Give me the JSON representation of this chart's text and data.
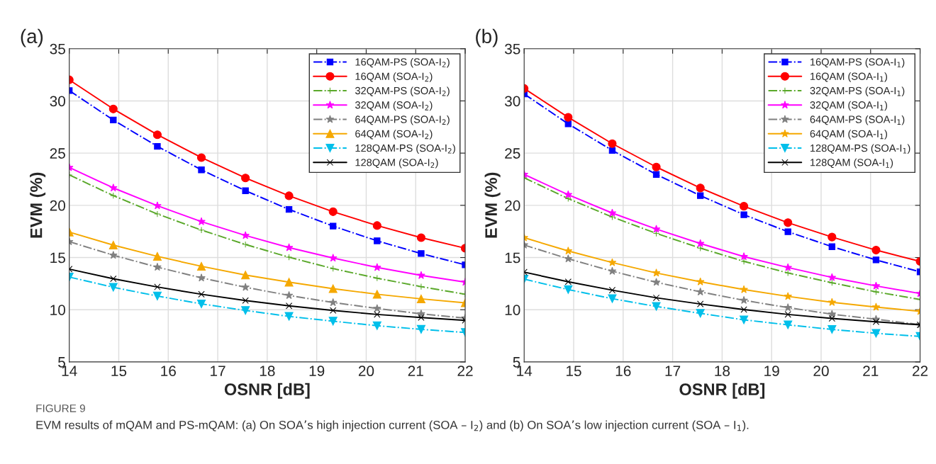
{
  "chart_data": [
    {
      "type": "line",
      "title": "(a)",
      "xlabel": "OSNR [dB]",
      "ylabel": "EVM (%)",
      "x": [
        14,
        14.89,
        15.78,
        16.67,
        17.56,
        18.44,
        19.33,
        20.22,
        21.11,
        22
      ],
      "xlim": [
        14,
        22
      ],
      "xticks": [
        14,
        15,
        16,
        17,
        18,
        19,
        20,
        21,
        22
      ],
      "ylim": [
        5,
        35
      ],
      "yticks": [
        5,
        10,
        15,
        20,
        25,
        30,
        35
      ],
      "grid": true,
      "legend": "top right",
      "annotations": [
        "FIGURE 9",
        "EVM results of mQAM and PS-mQAM: (a) On SOA’s high injection current (SOA – I$_{2}$) and (b) On SOA’s low injection current (SOA – I$_{1}$)."
      ],
      "series": [
        {
          "name": "16QAM-PS (SOA-I$_{2}$)",
          "color": "#0000ff",
          "marker": "square",
          "line_style": "dashdot",
          "values": [
            30.99,
            28.17,
            25.65,
            23.4,
            21.4,
            19.61,
            18.01,
            16.6,
            15.38,
            14.3
          ]
        },
        {
          "name": "16QAM (SOA-I$_{2}$)",
          "color": "#ff0000",
          "marker": "circle",
          "line_style": "solid",
          "values": [
            32.02,
            29.23,
            26.76,
            24.57,
            22.62,
            20.91,
            19.39,
            18.06,
            16.9,
            15.89
          ]
        },
        {
          "name": "32QAM-PS (SOA-I$_{2}$)",
          "color": "#5aa82a",
          "marker": "cross",
          "line_style": "dashdot",
          "values": [
            22.91,
            20.93,
            19.17,
            17.63,
            16.25,
            15.03,
            13.94,
            13.02,
            12.21,
            11.48
          ]
        },
        {
          "name": "32QAM (SOA-I$_{2}$)",
          "color": "#ff00ff",
          "marker": "star",
          "line_style": "solid",
          "values": [
            23.62,
            21.67,
            19.96,
            18.44,
            17.11,
            15.95,
            14.95,
            14.05,
            13.29,
            12.64
          ]
        },
        {
          "name": "64QAM-PS (SOA-I$_{2}$)",
          "color": "#808080",
          "marker": "star",
          "line_style": "dashdot",
          "values": [
            16.52,
            15.22,
            14.08,
            13.05,
            12.15,
            11.37,
            10.69,
            10.12,
            9.61,
            9.2
          ]
        },
        {
          "name": "64QAM (SOA-I$_{2}$)",
          "color": "#f5a800",
          "marker": "triangle",
          "line_style": "solid",
          "values": [
            17.44,
            16.19,
            15.11,
            14.16,
            13.32,
            12.64,
            12.02,
            11.48,
            11.04,
            10.66
          ]
        },
        {
          "name": "128QAM-PS (SOA-I$_{2}$)",
          "color": "#00bfea",
          "marker": "triangle_down",
          "line_style": "dashdot",
          "values": [
            13.13,
            12.15,
            11.31,
            10.56,
            9.93,
            9.36,
            8.9,
            8.47,
            8.12,
            7.82
          ]
        },
        {
          "name": "128QAM (SOA-I$_{2}$)",
          "color": "#000000",
          "marker": "x",
          "line_style": "solid",
          "values": [
            13.89,
            12.97,
            12.18,
            11.48,
            10.88,
            10.37,
            9.93,
            9.55,
            9.25,
            8.98
          ]
        }
      ]
    },
    {
      "type": "line",
      "title": "(b)",
      "xlabel": "OSNR [dB]",
      "ylabel": "EVM (%)",
      "x": [
        14,
        14.89,
        15.78,
        16.67,
        17.56,
        18.44,
        19.33,
        20.22,
        21.11,
        22
      ],
      "xlim": [
        14,
        22
      ],
      "xticks": [
        14,
        15,
        16,
        17,
        18,
        19,
        20,
        21,
        22
      ],
      "ylim": [
        5,
        35
      ],
      "yticks": [
        5,
        10,
        15,
        20,
        25,
        30,
        35
      ],
      "grid": true,
      "legend": "top right",
      "series": [
        {
          "name": "16QAM-PS (SOA-I$_{1}$)",
          "color": "#0000ff",
          "marker": "square",
          "line_style": "dashdot",
          "values": [
            30.67,
            27.8,
            25.26,
            22.96,
            20.93,
            19.1,
            17.47,
            16.04,
            14.77,
            13.63
          ]
        },
        {
          "name": "16QAM (SOA-I$_{1}$)",
          "color": "#ff0000",
          "marker": "circle",
          "line_style": "solid",
          "values": [
            31.19,
            28.43,
            25.91,
            23.67,
            21.66,
            19.91,
            18.34,
            16.96,
            15.71,
            14.63
          ]
        },
        {
          "name": "32QAM-PS (SOA-I$_{1}$)",
          "color": "#5aa82a",
          "marker": "cross",
          "line_style": "dashdot",
          "values": [
            22.64,
            20.64,
            18.88,
            17.31,
            15.9,
            14.63,
            13.52,
            12.58,
            11.71,
            10.98
          ]
        },
        {
          "name": "32QAM (SOA-I$_{1}$)",
          "color": "#ff00ff",
          "marker": "star",
          "line_style": "solid",
          "values": [
            22.96,
            21.02,
            19.26,
            17.72,
            16.34,
            15.09,
            14.04,
            13.09,
            12.28,
            11.55
          ]
        },
        {
          "name": "64QAM-PS (SOA-I$_{1}$)",
          "color": "#808080",
          "marker": "star",
          "line_style": "dashdot",
          "values": [
            16.2,
            14.88,
            13.69,
            12.63,
            11.71,
            10.9,
            10.2,
            9.57,
            9.09,
            8.57
          ]
        },
        {
          "name": "64QAM (SOA-I$_{1}$)",
          "color": "#f5a800",
          "marker": "star",
          "line_style": "solid",
          "values": [
            16.9,
            15.63,
            14.52,
            13.52,
            12.68,
            11.93,
            11.28,
            10.71,
            10.25,
            9.84
          ]
        },
        {
          "name": "128QAM-PS (SOA-I$_{1}$)",
          "color": "#00bfea",
          "marker": "triangle_down",
          "line_style": "dashdot",
          "values": [
            12.93,
            11.93,
            11.06,
            10.31,
            9.65,
            9.03,
            8.55,
            8.11,
            7.74,
            7.44
          ]
        },
        {
          "name": "128QAM (SOA-I$_{1}$)",
          "color": "#000000",
          "marker": "x",
          "line_style": "solid",
          "values": [
            13.6,
            12.68,
            11.87,
            11.14,
            10.55,
            10.01,
            9.55,
            9.17,
            8.84,
            8.55
          ]
        }
      ]
    }
  ]
}
